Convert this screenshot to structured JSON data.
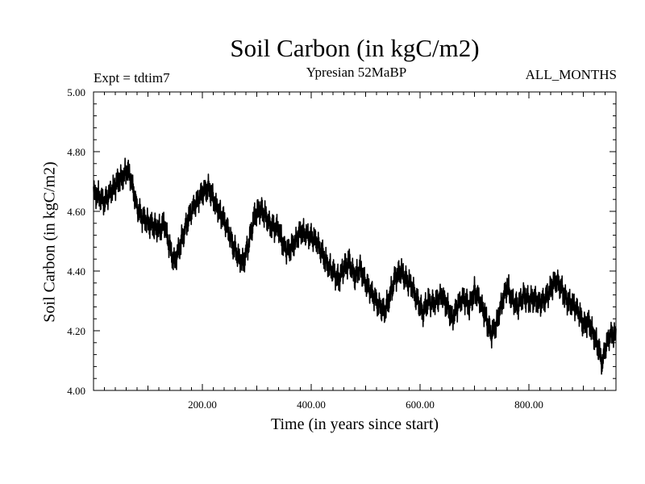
{
  "chart_data": {
    "type": "line",
    "title": "Soil Carbon (in kgC/m2)",
    "subtitle": "Ypresian  52MaBP",
    "experiment_label": "Expt = tdtim7",
    "months_label": "ALL_MONTHS",
    "xlabel": "Time (in years since start)",
    "ylabel": "Soil Carbon (in kgC/m2)",
    "xlim": [
      0,
      960
    ],
    "ylim": [
      4.0,
      5.0
    ],
    "x_ticks": [
      200,
      400,
      600,
      800
    ],
    "x_tick_labels": [
      "200.00",
      "400.00",
      "600.00",
      "800.00"
    ],
    "y_ticks": [
      4.0,
      4.2,
      4.4,
      4.6,
      4.8,
      5.0
    ],
    "y_tick_labels": [
      "4.00",
      "4.20",
      "4.40",
      "4.60",
      "4.80",
      "5.00"
    ],
    "noise_band": 0.045,
    "series": [
      {
        "name": "Soil Carbon",
        "x": [
          0,
          10,
          20,
          30,
          45,
          55,
          62,
          70,
          80,
          90,
          100,
          110,
          120,
          130,
          140,
          148,
          155,
          165,
          175,
          185,
          195,
          205,
          212,
          220,
          230,
          240,
          250,
          258,
          268,
          275,
          285,
          295,
          305,
          315,
          325,
          340,
          350,
          360,
          370,
          380,
          395,
          410,
          420,
          430,
          440,
          450,
          460,
          470,
          480,
          490,
          500,
          510,
          520,
          535,
          545,
          555,
          565,
          575,
          585,
          595,
          605,
          615,
          625,
          640,
          650,
          660,
          670,
          680,
          690,
          700,
          710,
          720,
          730,
          740,
          750,
          760,
          770,
          780,
          790,
          800,
          810,
          820,
          830,
          840,
          850,
          860,
          870,
          880,
          890,
          900,
          910,
          920,
          930,
          935,
          940,
          950,
          960
        ],
        "values": [
          4.66,
          4.65,
          4.63,
          4.66,
          4.7,
          4.72,
          4.74,
          4.7,
          4.61,
          4.58,
          4.56,
          4.55,
          4.54,
          4.56,
          4.48,
          4.43,
          4.46,
          4.52,
          4.58,
          4.62,
          4.65,
          4.67,
          4.68,
          4.64,
          4.6,
          4.57,
          4.52,
          4.48,
          4.44,
          4.43,
          4.49,
          4.58,
          4.61,
          4.59,
          4.55,
          4.54,
          4.48,
          4.47,
          4.5,
          4.53,
          4.52,
          4.5,
          4.46,
          4.42,
          4.4,
          4.37,
          4.41,
          4.43,
          4.38,
          4.41,
          4.36,
          4.33,
          4.3,
          4.26,
          4.32,
          4.38,
          4.4,
          4.37,
          4.35,
          4.3,
          4.26,
          4.3,
          4.29,
          4.32,
          4.28,
          4.24,
          4.29,
          4.31,
          4.28,
          4.33,
          4.3,
          4.25,
          4.19,
          4.22,
          4.29,
          4.35,
          4.3,
          4.28,
          4.32,
          4.3,
          4.31,
          4.29,
          4.31,
          4.34,
          4.37,
          4.34,
          4.3,
          4.29,
          4.27,
          4.22,
          4.23,
          4.18,
          4.13,
          4.09,
          4.14,
          4.19,
          4.18
        ]
      }
    ]
  }
}
